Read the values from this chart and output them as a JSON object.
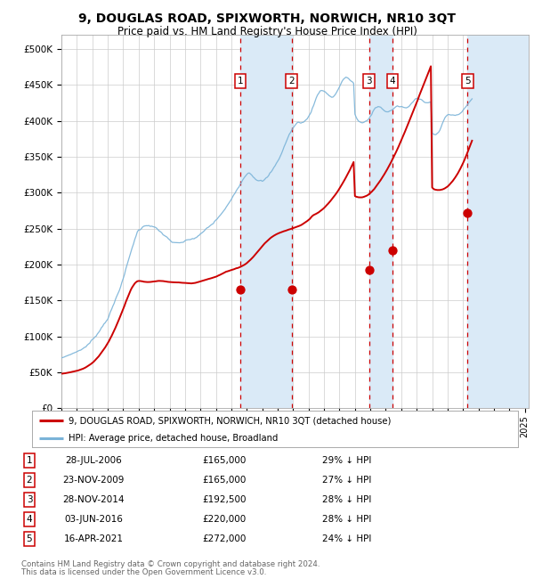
{
  "title": "9, DOUGLAS ROAD, SPIXWORTH, NORWICH, NR10 3QT",
  "subtitle": "Price paid vs. HM Land Registry's House Price Index (HPI)",
  "footer_line1": "Contains HM Land Registry data © Crown copyright and database right 2024.",
  "footer_line2": "This data is licensed under the Open Government Licence v3.0.",
  "legend_red": "9, DOUGLAS ROAD, SPIXWORTH, NORWICH, NR10 3QT (detached house)",
  "legend_blue": "HPI: Average price, detached house, Broadland",
  "transactions": [
    {
      "num": 1,
      "date": "2006-07-28",
      "price": 165000
    },
    {
      "num": 2,
      "date": "2009-11-23",
      "price": 165000
    },
    {
      "num": 3,
      "date": "2014-11-28",
      "price": 192500
    },
    {
      "num": 4,
      "date": "2016-06-03",
      "price": 220000
    },
    {
      "num": 5,
      "date": "2021-04-16",
      "price": 272000
    }
  ],
  "table_dates": [
    "28-JUL-2006",
    "23-NOV-2009",
    "28-NOV-2014",
    "03-JUN-2016",
    "16-APR-2021"
  ],
  "table_prices": [
    "£165,000",
    "£165,000",
    "£192,500",
    "£220,000",
    "£272,000"
  ],
  "table_pcts": [
    "29% ↓ HPI",
    "27% ↓ HPI",
    "28% ↓ HPI",
    "28% ↓ HPI",
    "24% ↓ HPI"
  ],
  "red_color": "#cc0000",
  "blue_color": "#7ab3d8",
  "dashed_color": "#cc0000",
  "shade_color": "#daeaf7",
  "grid_color": "#cccccc",
  "background_color": "#ffffff",
  "ylim": [
    0,
    520000
  ],
  "yticks": [
    0,
    50000,
    100000,
    150000,
    200000,
    250000,
    300000,
    350000,
    400000,
    450000,
    500000
  ],
  "ytick_labels": [
    "£0",
    "£50K",
    "£100K",
    "£150K",
    "£200K",
    "£250K",
    "£300K",
    "£350K",
    "£400K",
    "£450K",
    "£500K"
  ],
  "hpi_monthly": [
    70000,
    70500,
    71000,
    71800,
    72500,
    73200,
    74000,
    74800,
    75500,
    76200,
    77000,
    77800,
    78500,
    79500,
    80500,
    81500,
    82500,
    83800,
    85000,
    86500,
    88000,
    89500,
    91000,
    93000,
    95000,
    97000,
    99500,
    102000,
    104500,
    107000,
    110000,
    113000,
    116000,
    119000,
    122000,
    125000,
    128000,
    132000,
    136000,
    140000,
    144000,
    148000,
    153000,
    158000,
    163000,
    168000,
    173000,
    178000,
    183000,
    189000,
    195000,
    201000,
    207000,
    213000,
    219000,
    225000,
    231000,
    237000,
    242000,
    247000,
    250000,
    251000,
    252500,
    254000,
    255500,
    256500,
    257500,
    258000,
    258500,
    258000,
    257500,
    257000,
    256500,
    255000,
    253000,
    251000,
    249000,
    247500,
    246000,
    244500,
    243000,
    241500,
    240000,
    238500,
    237000,
    235500,
    234000,
    233000,
    232000,
    231500,
    231000,
    230500,
    230500,
    231000,
    231500,
    232000,
    232500,
    233000,
    233500,
    234000,
    234500,
    235000,
    235500,
    236000,
    237000,
    238000,
    239000,
    240000,
    241000,
    242500,
    244000,
    245500,
    247000,
    248500,
    250000,
    251500,
    253000,
    254500,
    256000,
    258000,
    260000,
    262000,
    264000,
    266000,
    268000,
    270000,
    272000,
    274000,
    276500,
    279000,
    282000,
    285000,
    288000,
    291500,
    295000,
    298500,
    302000,
    305500,
    309000,
    312500,
    316000,
    319000,
    322000,
    325000,
    328000,
    330000,
    330500,
    329500,
    328000,
    326500,
    325000,
    324000,
    323000,
    322000,
    321500,
    321000,
    320500,
    321000,
    322000,
    323500,
    325000,
    327000,
    329500,
    332000,
    334500,
    337000,
    340000,
    343000,
    346500,
    350000,
    354000,
    358000,
    362500,
    367000,
    371500,
    376000,
    380000,
    384000,
    387500,
    390500,
    393500,
    396000,
    398000,
    399500,
    400500,
    401000,
    401000,
    401500,
    402000,
    403000,
    404500,
    406500,
    409000,
    412500,
    416500,
    421000,
    426000,
    431000,
    435500,
    439500,
    443000,
    445500,
    447000,
    447500,
    447000,
    445500,
    443500,
    441500,
    440000,
    439000,
    438500,
    439000,
    440500,
    443000,
    446000,
    449500,
    453500,
    457500,
    461000,
    463500,
    465000,
    465500,
    465000,
    464000,
    462500,
    461000,
    459500,
    458000,
    415000,
    410000,
    407000,
    405000,
    403500,
    402500,
    402000,
    402000,
    402500,
    403500,
    405000,
    407000,
    410000,
    413500,
    417000,
    420000,
    422000,
    423000,
    423500,
    423500,
    423000,
    422000,
    420500,
    419000,
    418000,
    417500,
    417500,
    418000,
    419000,
    420500,
    422000,
    423000,
    424000,
    424500,
    424500,
    424000,
    423500,
    423000,
    422500,
    422000,
    422000,
    422500,
    423500,
    425000,
    427000,
    429000,
    431000,
    432500,
    433500,
    434000,
    434000,
    433500,
    433000,
    432500,
    432000,
    431500,
    431000,
    431000,
    431500,
    432500,
    390000,
    388000,
    387000,
    387000,
    388000,
    390000,
    393000,
    397000,
    401000,
    405000,
    408000,
    410500,
    412000,
    412500,
    412500,
    412000,
    411500,
    411000,
    410500,
    410500,
    411000,
    412000,
    413500,
    415000,
    417000,
    419000,
    421000,
    423000,
    425000,
    427000,
    429000,
    431000
  ],
  "red_monthly": [
    48000,
    48200,
    48400,
    48700,
    49000,
    49300,
    49700,
    50100,
    50500,
    50900,
    51300,
    51700,
    52200,
    52700,
    53300,
    54000,
    54700,
    55500,
    56400,
    57400,
    58500,
    59700,
    61000,
    62300,
    63800,
    65400,
    67100,
    68900,
    70800,
    72800,
    75000,
    77300,
    79800,
    82400,
    85100,
    88000,
    91000,
    94300,
    97700,
    101200,
    104800,
    108500,
    112500,
    116700,
    121000,
    125400,
    129900,
    134400,
    139000,
    143700,
    148400,
    153000,
    157500,
    161800,
    165800,
    169300,
    172300,
    174700,
    176500,
    177700,
    178000,
    178000,
    177800,
    177600,
    177400,
    177300,
    177200,
    177100,
    177100,
    177200,
    177400,
    177600,
    177900,
    178200,
    178500,
    178700,
    178800,
    178700,
    178500,
    178200,
    177900,
    177600,
    177300,
    177100,
    176900,
    176800,
    176700,
    176600,
    176500,
    176400,
    176300,
    176200,
    176100,
    176000,
    175900,
    175800,
    175700,
    175600,
    175500,
    175400,
    175400,
    175500,
    175700,
    176000,
    176400,
    176900,
    177500,
    178100,
    178700,
    179300,
    179900,
    180400,
    180900,
    181400,
    181900,
    182400,
    182900,
    183400,
    184000,
    184600,
    185200,
    185900,
    186600,
    187400,
    188200,
    189100,
    190000,
    190900,
    191800,
    192500,
    193200,
    193900,
    194500,
    195100,
    195700,
    196300,
    196900,
    197500,
    198200,
    199000,
    199900,
    200900,
    202000,
    203200,
    204500,
    206000,
    207600,
    209300,
    211100,
    213000,
    215000,
    217100,
    219300,
    221500,
    223700,
    225800,
    228000,
    230100,
    232000,
    233800,
    235500,
    237100,
    238600,
    240000,
    241300,
    242500,
    243600,
    244600,
    245500,
    246300,
    247000,
    247700,
    248300,
    248900,
    249500,
    250100,
    250700,
    251300,
    251900,
    252500,
    253100,
    253700,
    254300,
    255000,
    255700,
    256500,
    257400,
    258400,
    259500,
    260700,
    262000,
    263400,
    265000,
    266700,
    268600,
    270600,
    272000,
    273000,
    274000,
    275100,
    276300,
    277600,
    279000,
    280500,
    282100,
    283800,
    285600,
    287500,
    289500,
    291600,
    293800,
    296100,
    298500,
    301000,
    303600,
    306300,
    309100,
    312000,
    315000,
    318100,
    321300,
    324600,
    328000,
    331500,
    335100,
    338800,
    342600,
    346400,
    299000,
    298000,
    297500,
    297200,
    297100,
    297200,
    297500,
    298000,
    298700,
    299600,
    300700,
    302000,
    303500,
    305200,
    307100,
    309100,
    311300,
    313600,
    316000,
    318500,
    321100,
    323800,
    326600,
    329500,
    332500,
    335600,
    338800,
    342100,
    345500,
    349000,
    352600,
    356300,
    360100,
    363900,
    367800,
    371800,
    375800,
    379900,
    384100,
    388300,
    392600,
    396900,
    401300,
    405700,
    410200,
    414700,
    419200,
    423700,
    428200,
    432800,
    437400,
    442000,
    446600,
    451200,
    455800,
    460400,
    465000,
    469600,
    474200,
    478800,
    310000,
    308000,
    307000,
    306500,
    306200,
    306100,
    306200,
    306500,
    307000,
    307700,
    308600,
    309700,
    311000,
    312500,
    314200,
    316100,
    318200,
    320500,
    323000,
    325700,
    328600,
    331700,
    335000,
    338500,
    342200,
    346100,
    350200,
    354400,
    358800,
    363300,
    367900,
    372600
  ]
}
